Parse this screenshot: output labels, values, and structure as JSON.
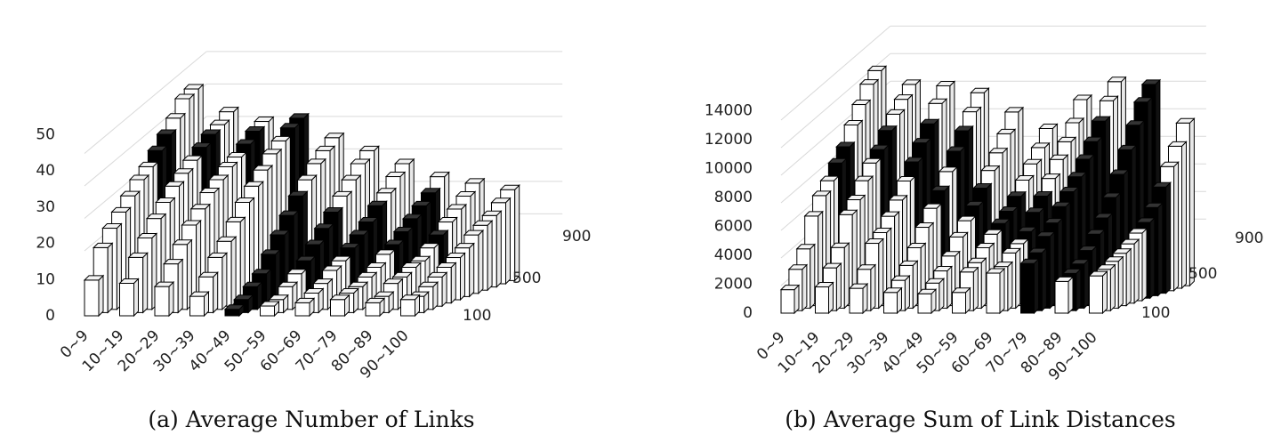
{
  "figure": {
    "captions": [
      "(a) Average Number of Links",
      "(b) Average Sum of Link Distances"
    ]
  },
  "chart_data": [
    {
      "type": "bar",
      "title": "(a) Average Number of Links",
      "projection": "3d-column",
      "categories": [
        "0~9",
        "10~19",
        "20~29",
        "30~39",
        "40~49",
        "50~59",
        "60~69",
        "70~79",
        "80~89",
        "90~100"
      ],
      "depth_labels": [
        "100",
        "500",
        "900"
      ],
      "zlim": [
        0,
        50
      ],
      "z_ticks": [
        "0",
        "10",
        "20",
        "30",
        "40",
        "50"
      ],
      "colors": {
        "normal": "#ffffff",
        "highlight": "#000000"
      },
      "series": [
        {
          "values": [
            11,
            10,
            9,
            6,
            2,
            3,
            4,
            5,
            4,
            5
          ],
          "highlight": [
            4
          ]
        },
        {
          "values": [
            20,
            17,
            15,
            11,
            4,
            4,
            6,
            6,
            5,
            5
          ],
          "highlight": [
            4
          ]
        },
        {
          "values": [
            25,
            22,
            20,
            16,
            7,
            7,
            8,
            7,
            8,
            7
          ],
          "highlight": [
            4
          ]
        },
        {
          "values": [
            29,
            27,
            25,
            20,
            10,
            10,
            11,
            9,
            9,
            9
          ],
          "highlight": [
            4
          ]
        },
        {
          "values": [
            33,
            31,
            29,
            25,
            15,
            13,
            13,
            11,
            11,
            11
          ],
          "highlight": [
            4,
            5
          ]
        },
        {
          "values": [
            37,
            35,
            33,
            30,
            20,
            17,
            16,
            14,
            12,
            13
          ],
          "highlight": [
            4,
            5,
            6
          ]
        },
        {
          "values": [
            40,
            38,
            36,
            34,
            25,
            21,
            19,
            16,
            15,
            15
          ],
          "highlight": [
            4,
            5,
            6,
            7
          ]
        },
        {
          "values": [
            44,
            41,
            39,
            38,
            30,
            25,
            22,
            19,
            18,
            18
          ],
          "highlight": [
            0,
            4,
            5,
            6,
            7,
            8
          ]
        },
        {
          "values": [
            48,
            44,
            41,
            42,
            34,
            29,
            26,
            22,
            21,
            20
          ],
          "highlight": [
            0,
            1,
            6,
            7
          ]
        },
        {
          "values": [
            52,
            47,
            44,
            45,
            38,
            33,
            29,
            25,
            24,
            22
          ],
          "highlight": [
            1,
            2,
            7
          ]
        },
        {
          "values": [
            57,
            49,
            47,
            48,
            41,
            37,
            33,
            28,
            27,
            25
          ],
          "highlight": [
            2,
            3,
            7
          ]
        },
        {
          "values": [
            59,
            52,
            49,
            50,
            44,
            40,
            36,
            32,
            30,
            28
          ],
          "highlight": [
            3
          ]
        }
      ]
    },
    {
      "type": "bar",
      "title": "(b) Average Sum of Link Distances",
      "projection": "3d-column",
      "categories": [
        "0~9",
        "10~19",
        "20~29",
        "30~39",
        "40~49",
        "50~59",
        "60~69",
        "70~79",
        "80~89",
        "90~100"
      ],
      "depth_labels": [
        "100",
        "500",
        "900"
      ],
      "zlim": [
        0,
        14000
      ],
      "z_ticks": [
        "0",
        "2000",
        "4000",
        "6000",
        "8000",
        "10000",
        "12000",
        "14000"
      ],
      "colors": {
        "normal": "#ffffff",
        "highlight": "#000000"
      },
      "series": [
        {
          "values": [
            1700,
            1900,
            1800,
            1500,
            1400,
            1500,
            2900,
            3600,
            2300,
            2700
          ],
          "highlight": [
            7
          ]
        },
        {
          "values": [
            3000,
            3100,
            3000,
            2200,
            2000,
            2800,
            3200,
            4200,
            2700,
            3000
          ],
          "highlight": [
            7,
            8
          ]
        },
        {
          "values": [
            4300,
            4400,
            4700,
            3100,
            2700,
            3300,
            4000,
            5200,
            3200,
            3400
          ],
          "highlight": [
            7,
            8
          ]
        },
        {
          "values": [
            6500,
            6600,
            5300,
            4200,
            3600,
            4200,
            4500,
            6000,
            4000,
            3800
          ],
          "highlight": [
            7,
            8
          ]
        },
        {
          "values": [
            7800,
            7500,
            6300,
            5500,
            4800,
            5000,
            5200,
            7000,
            5000,
            4300
          ],
          "highlight": [
            6,
            7,
            8
          ]
        },
        {
          "values": [
            8700,
            8700,
            7300,
            6700,
            5800,
            5600,
            6400,
            7900,
            6000,
            4900
          ],
          "highlight": [
            5,
            6,
            7,
            8
          ]
        },
        {
          "values": [
            9800,
            9800,
            8500,
            7800,
            6700,
            6300,
            7400,
            8800,
            7300,
            5500
          ],
          "highlight": [
            0,
            3,
            4,
            5,
            6,
            7,
            8,
            9
          ]
        },
        {
          "values": [
            10800,
            10600,
            9700,
            9000,
            7800,
            7200,
            8500,
            9900,
            8800,
            6400
          ],
          "highlight": [
            0,
            1,
            2,
            4,
            5,
            7,
            8,
            9
          ]
        },
        {
          "values": [
            12200,
            11800,
            10900,
            10300,
            8900,
            8200,
            9700,
            11000,
            10400,
            7700
          ],
          "highlight": [
            1,
            2,
            3,
            7,
            8,
            9
          ]
        },
        {
          "values": [
            13500,
            12800,
            12100,
            11600,
            10000,
            9200,
            10800,
            12300,
            12000,
            9000
          ],
          "highlight": [
            2,
            3,
            7,
            8
          ]
        },
        {
          "values": [
            14800,
            13700,
            13400,
            12800,
            11200,
            10200,
            12000,
            13600,
            13500,
            10300
          ],
          "highlight": [
            8
          ]
        },
        {
          "values": [
            15600,
            14600,
            14500,
            14000,
            12600,
            11400,
            13500,
            14800,
            14600,
            11800
          ],
          "highlight": [
            8
          ]
        }
      ]
    }
  ]
}
